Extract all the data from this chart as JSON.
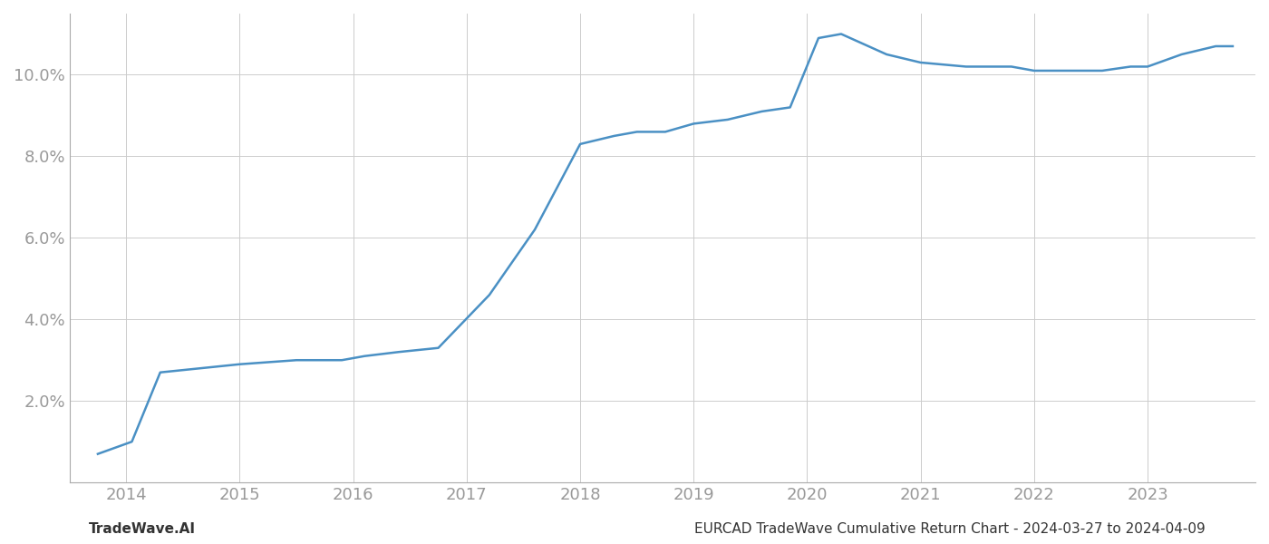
{
  "x": [
    2013.75,
    2014.05,
    2014.3,
    2015.0,
    2015.5,
    2015.9,
    2016.1,
    2016.4,
    2016.75,
    2017.2,
    2017.6,
    2018.0,
    2018.3,
    2018.5,
    2018.75,
    2019.0,
    2019.3,
    2019.6,
    2019.85,
    2020.1,
    2020.3,
    2020.7,
    2021.0,
    2021.4,
    2021.8,
    2022.0,
    2022.3,
    2022.6,
    2022.85,
    2023.0,
    2023.3,
    2023.6,
    2023.75
  ],
  "y": [
    0.007,
    0.01,
    0.027,
    0.029,
    0.03,
    0.03,
    0.031,
    0.032,
    0.033,
    0.046,
    0.062,
    0.083,
    0.085,
    0.086,
    0.086,
    0.088,
    0.089,
    0.091,
    0.092,
    0.109,
    0.11,
    0.105,
    0.103,
    0.102,
    0.102,
    0.101,
    0.101,
    0.101,
    0.102,
    0.102,
    0.105,
    0.107,
    0.107
  ],
  "line_color": "#4a90c4",
  "line_width": 1.8,
  "background_color": "#ffffff",
  "grid_color": "#cccccc",
  "tick_color": "#999999",
  "footer_left": "TradeWave.AI",
  "footer_right": "EURCAD TradeWave Cumulative Return Chart - 2024-03-27 to 2024-04-09",
  "xlim": [
    2013.5,
    2023.95
  ],
  "ylim": [
    0.0,
    0.115
  ],
  "yticks": [
    0.02,
    0.04,
    0.06,
    0.08,
    0.1
  ],
  "ytick_labels": [
    "2.0%",
    "4.0%",
    "6.0%",
    "8.0%",
    "10.0%"
  ],
  "xticks": [
    2014,
    2015,
    2016,
    2017,
    2018,
    2019,
    2020,
    2021,
    2022,
    2023
  ],
  "xtick_labels": [
    "2014",
    "2015",
    "2016",
    "2017",
    "2018",
    "2019",
    "2020",
    "2021",
    "2022",
    "2023"
  ],
  "footer_fontsize": 11,
  "tick_fontsize": 13,
  "spine_color": "#aaaaaa"
}
